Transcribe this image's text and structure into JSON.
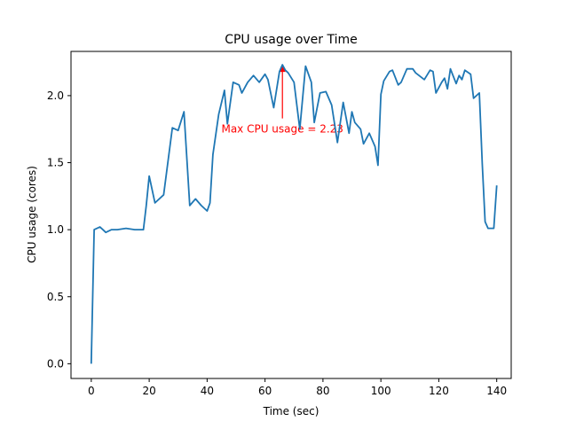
{
  "chart_data": {
    "type": "line",
    "title": "CPU usage over Time",
    "xlabel": "Time (sec)",
    "ylabel": "CPU usage (cores)",
    "xlim": [
      -7,
      145
    ],
    "ylim": [
      -0.11,
      2.33
    ],
    "xticks": [
      0,
      20,
      40,
      60,
      80,
      100,
      120,
      140
    ],
    "yticks": [
      0.0,
      0.5,
      1.0,
      1.5,
      2.0
    ],
    "ytick_labels": [
      "0.0",
      "0.5",
      "1.0",
      "1.5",
      "2.0"
    ],
    "grid": false,
    "colors": {
      "line": "#1f77b4",
      "annotation": "#ff0000"
    },
    "series": [
      {
        "x": [
          0,
          1,
          3,
          4,
          5,
          7,
          9,
          12,
          15,
          18,
          19,
          20,
          22,
          25,
          28,
          30,
          32,
          34,
          36,
          38,
          40,
          41,
          42,
          44,
          46,
          47,
          49,
          51,
          52,
          54,
          56,
          58,
          60,
          61,
          63,
          65,
          66,
          67,
          68,
          70,
          72,
          74,
          76,
          77,
          79,
          81,
          83,
          85,
          87,
          89,
          90,
          91,
          93,
          94,
          96,
          98,
          99,
          100,
          101,
          103,
          104,
          106,
          107,
          109,
          111,
          112,
          115,
          117,
          118,
          119,
          121,
          122,
          123,
          124,
          126,
          127,
          128,
          129,
          131,
          132,
          134,
          135,
          136,
          137,
          138,
          139,
          140
        ],
        "y": [
          0.0,
          1.0,
          1.02,
          1.0,
          0.98,
          1.0,
          1.0,
          1.01,
          1.0,
          1.0,
          1.18,
          1.4,
          1.2,
          1.26,
          1.76,
          1.74,
          1.88,
          1.18,
          1.23,
          1.18,
          1.14,
          1.2,
          1.56,
          1.86,
          2.04,
          1.79,
          2.1,
          2.08,
          2.02,
          2.1,
          2.15,
          2.1,
          2.16,
          2.12,
          1.91,
          2.18,
          2.23,
          2.19,
          2.17,
          2.1,
          1.75,
          2.22,
          2.1,
          1.8,
          2.02,
          2.03,
          1.93,
          1.65,
          1.95,
          1.72,
          1.88,
          1.8,
          1.75,
          1.64,
          1.72,
          1.62,
          1.48,
          2.01,
          2.11,
          2.18,
          2.19,
          2.08,
          2.1,
          2.2,
          2.2,
          2.17,
          2.12,
          2.19,
          2.18,
          2.02,
          2.1,
          2.13,
          2.05,
          2.2,
          2.09,
          2.15,
          2.12,
          2.19,
          2.16,
          1.98,
          2.02,
          1.49,
          1.06,
          1.01,
          1.01,
          1.01,
          1.33
        ]
      }
    ],
    "annotation": {
      "text": "Max CPU usage = 2.23",
      "x": 66,
      "y": 2.23,
      "text_x": 66,
      "text_y": 1.83
    }
  }
}
